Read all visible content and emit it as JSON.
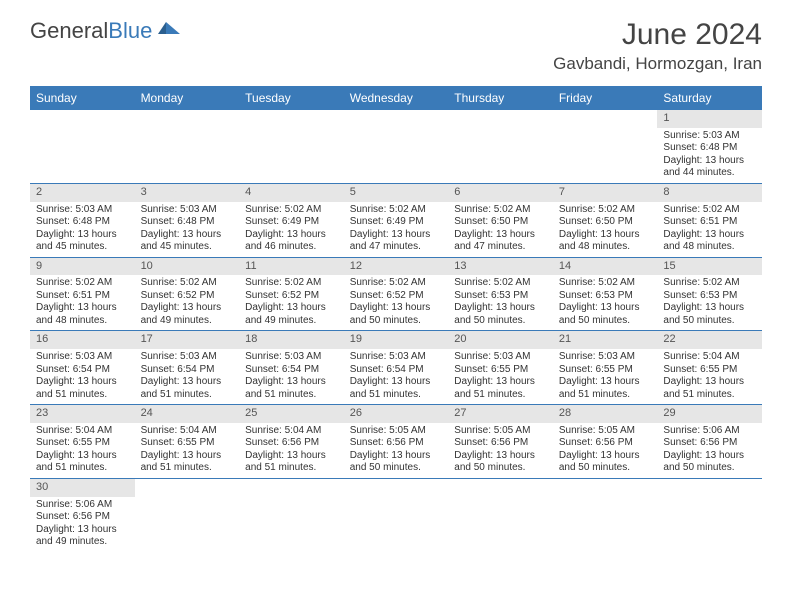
{
  "logo": {
    "text_a": "General",
    "text_b": "Blue"
  },
  "title": "June 2024",
  "location": "Gavbandi, Hormozgan, Iran",
  "colors": {
    "header_bg": "#3a7ab8",
    "header_fg": "#ffffff",
    "daynum_bg": "#e6e6e6",
    "border": "#3a7ab8",
    "text": "#333333",
    "logo_blue": "#3a7ab8"
  },
  "dayHeaders": [
    "Sunday",
    "Monday",
    "Tuesday",
    "Wednesday",
    "Thursday",
    "Friday",
    "Saturday"
  ],
  "labels": {
    "sunrise": "Sunrise:",
    "sunset": "Sunset:",
    "daylight": "Daylight:"
  },
  "weeks": [
    [
      null,
      null,
      null,
      null,
      null,
      null,
      {
        "n": "1",
        "rise": "5:03 AM",
        "set": "6:48 PM",
        "dh": "13",
        "dm": "44"
      }
    ],
    [
      {
        "n": "2",
        "rise": "5:03 AM",
        "set": "6:48 PM",
        "dh": "13",
        "dm": "45"
      },
      {
        "n": "3",
        "rise": "5:03 AM",
        "set": "6:48 PM",
        "dh": "13",
        "dm": "45"
      },
      {
        "n": "4",
        "rise": "5:02 AM",
        "set": "6:49 PM",
        "dh": "13",
        "dm": "46"
      },
      {
        "n": "5",
        "rise": "5:02 AM",
        "set": "6:49 PM",
        "dh": "13",
        "dm": "47"
      },
      {
        "n": "6",
        "rise": "5:02 AM",
        "set": "6:50 PM",
        "dh": "13",
        "dm": "47"
      },
      {
        "n": "7",
        "rise": "5:02 AM",
        "set": "6:50 PM",
        "dh": "13",
        "dm": "48"
      },
      {
        "n": "8",
        "rise": "5:02 AM",
        "set": "6:51 PM",
        "dh": "13",
        "dm": "48"
      }
    ],
    [
      {
        "n": "9",
        "rise": "5:02 AM",
        "set": "6:51 PM",
        "dh": "13",
        "dm": "48"
      },
      {
        "n": "10",
        "rise": "5:02 AM",
        "set": "6:52 PM",
        "dh": "13",
        "dm": "49"
      },
      {
        "n": "11",
        "rise": "5:02 AM",
        "set": "6:52 PM",
        "dh": "13",
        "dm": "49"
      },
      {
        "n": "12",
        "rise": "5:02 AM",
        "set": "6:52 PM",
        "dh": "13",
        "dm": "50"
      },
      {
        "n": "13",
        "rise": "5:02 AM",
        "set": "6:53 PM",
        "dh": "13",
        "dm": "50"
      },
      {
        "n": "14",
        "rise": "5:02 AM",
        "set": "6:53 PM",
        "dh": "13",
        "dm": "50"
      },
      {
        "n": "15",
        "rise": "5:02 AM",
        "set": "6:53 PM",
        "dh": "13",
        "dm": "50"
      }
    ],
    [
      {
        "n": "16",
        "rise": "5:03 AM",
        "set": "6:54 PM",
        "dh": "13",
        "dm": "51"
      },
      {
        "n": "17",
        "rise": "5:03 AM",
        "set": "6:54 PM",
        "dh": "13",
        "dm": "51"
      },
      {
        "n": "18",
        "rise": "5:03 AM",
        "set": "6:54 PM",
        "dh": "13",
        "dm": "51"
      },
      {
        "n": "19",
        "rise": "5:03 AM",
        "set": "6:54 PM",
        "dh": "13",
        "dm": "51"
      },
      {
        "n": "20",
        "rise": "5:03 AM",
        "set": "6:55 PM",
        "dh": "13",
        "dm": "51"
      },
      {
        "n": "21",
        "rise": "5:03 AM",
        "set": "6:55 PM",
        "dh": "13",
        "dm": "51"
      },
      {
        "n": "22",
        "rise": "5:04 AM",
        "set": "6:55 PM",
        "dh": "13",
        "dm": "51"
      }
    ],
    [
      {
        "n": "23",
        "rise": "5:04 AM",
        "set": "6:55 PM",
        "dh": "13",
        "dm": "51"
      },
      {
        "n": "24",
        "rise": "5:04 AM",
        "set": "6:55 PM",
        "dh": "13",
        "dm": "51"
      },
      {
        "n": "25",
        "rise": "5:04 AM",
        "set": "6:56 PM",
        "dh": "13",
        "dm": "51"
      },
      {
        "n": "26",
        "rise": "5:05 AM",
        "set": "6:56 PM",
        "dh": "13",
        "dm": "50"
      },
      {
        "n": "27",
        "rise": "5:05 AM",
        "set": "6:56 PM",
        "dh": "13",
        "dm": "50"
      },
      {
        "n": "28",
        "rise": "5:05 AM",
        "set": "6:56 PM",
        "dh": "13",
        "dm": "50"
      },
      {
        "n": "29",
        "rise": "5:06 AM",
        "set": "6:56 PM",
        "dh": "13",
        "dm": "50"
      }
    ],
    [
      {
        "n": "30",
        "rise": "5:06 AM",
        "set": "6:56 PM",
        "dh": "13",
        "dm": "49"
      },
      null,
      null,
      null,
      null,
      null,
      null
    ]
  ]
}
